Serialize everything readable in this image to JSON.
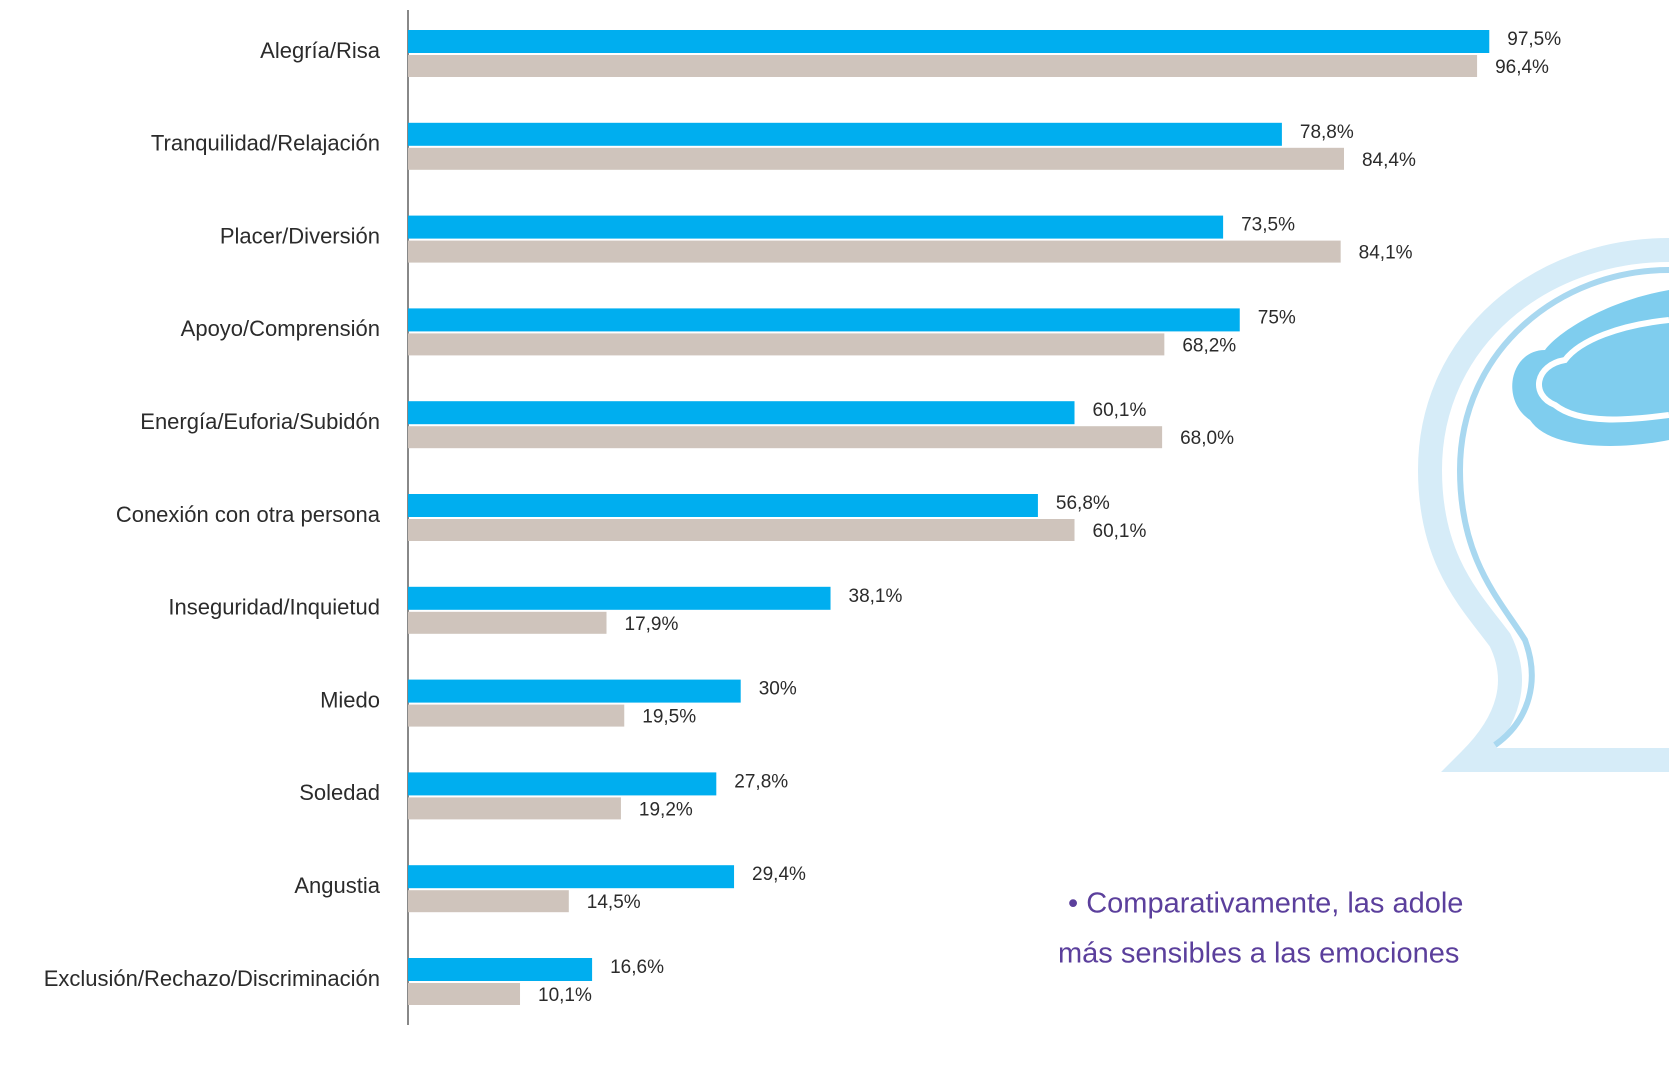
{
  "chart_data": {
    "type": "bar",
    "orientation": "horizontal",
    "categories": [
      "Alegría/Risa",
      "Tranquilidad/Relajación",
      "Placer/Diversión",
      "Apoyo/Comprensión",
      "Energía/Euforia/Subidón",
      "Conexión con otra persona",
      "Inseguridad/Inquietud",
      "Miedo",
      "Soledad",
      "Angustia",
      "Exclusión/Rechazo/Discriminación"
    ],
    "series": [
      {
        "color": "#00aeef",
        "values": [
          97.5,
          78.8,
          73.5,
          75,
          60.1,
          56.8,
          38.1,
          30,
          27.8,
          29.4,
          16.6
        ],
        "value_labels": [
          "97,5%",
          "78,8%",
          "73,5%",
          "75%",
          "60,1%",
          "56,8%",
          "38,1%",
          "30%",
          "27,8%",
          "29,4%",
          "16,6%"
        ]
      },
      {
        "color": "#cfc4bc",
        "values": [
          96.4,
          84.4,
          84.1,
          68.2,
          68.0,
          60.1,
          17.9,
          19.5,
          19.2,
          14.5,
          10.1
        ],
        "value_labels": [
          "96,4%",
          "84,4%",
          "84,1%",
          "68,2%",
          "68,0%",
          "60,1%",
          "17,9%",
          "19,5%",
          "19,2%",
          "14,5%",
          "10,1%"
        ]
      }
    ],
    "xlim": [
      0,
      100
    ],
    "annotation": [
      "• Comparativamente, las adole",
      "más sensibles a las emociones"
    ]
  }
}
